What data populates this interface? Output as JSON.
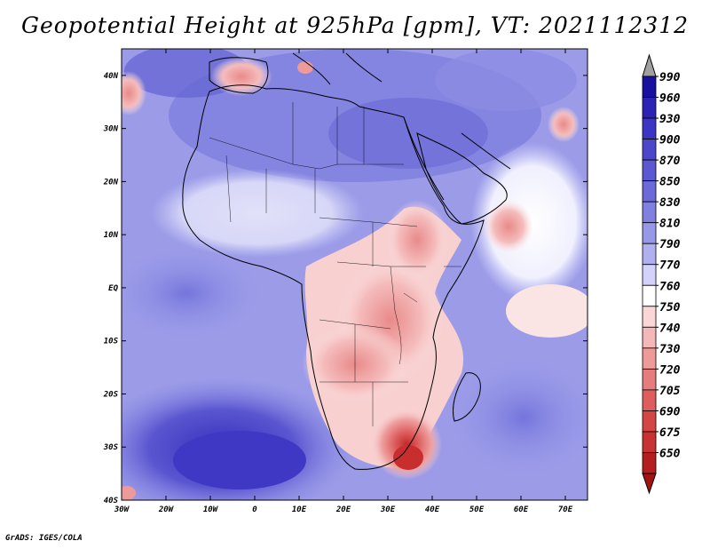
{
  "title": "Geopotential Height at 925hPa [gpm], VT: 2021112312",
  "footer": "GrADS: IGES/COLA",
  "map": {
    "variable": "Geopotential Height",
    "level": "925hPa",
    "units": "gpm",
    "valid_time": "2021112312",
    "lon_range": [
      -30,
      75
    ],
    "lat_range": [
      -40,
      45
    ],
    "lon_ticks": [
      "30W",
      "20W",
      "10W",
      "0",
      "10E",
      "20E",
      "30E",
      "40E",
      "50E",
      "60E",
      "70E"
    ],
    "lat_ticks": [
      "40N",
      "30N",
      "20N",
      "10N",
      "EQ",
      "10S",
      "20S",
      "30S",
      "40S"
    ]
  },
  "colorbar": {
    "labels": [
      "990",
      "960",
      "930",
      "900",
      "870",
      "850",
      "830",
      "810",
      "790",
      "770",
      "760",
      "750",
      "740",
      "730",
      "720",
      "705",
      "690",
      "675",
      "650"
    ],
    "colors": [
      "#1a10a0",
      "#2c22b4",
      "#3c34c2",
      "#4c46ca",
      "#5c58d2",
      "#6c6ad8",
      "#8080e0",
      "#9898e8",
      "#b0b0f0",
      "#d2d2fa",
      "#ffffff",
      "#fad6d6",
      "#f4b8b8",
      "#ee9a9a",
      "#e67c7c",
      "#de5e5e",
      "#d44646",
      "#c83232",
      "#b41e1e"
    ]
  }
}
